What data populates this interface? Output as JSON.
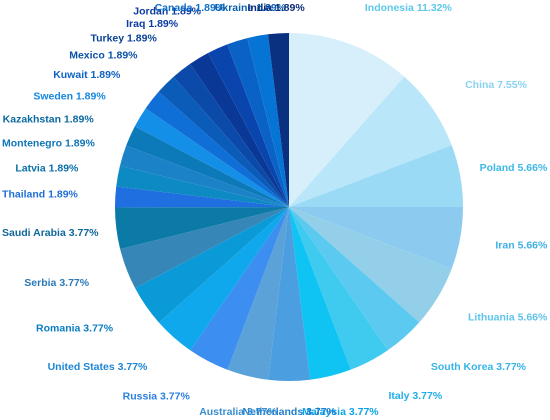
{
  "chart_data": {
    "type": "pie",
    "start": "top",
    "direction": "clockwise",
    "slices": [
      {
        "label": "Indonesia",
        "value": 11.32,
        "color": "#d7effb",
        "text_color": "#5ec8ea",
        "display": "Indonesia 11.32%"
      },
      {
        "label": "China",
        "value": 7.55,
        "color": "#b9e6f8",
        "text_color": "#8ad3f0",
        "display": "China 7.55%"
      },
      {
        "label": "Poland",
        "value": 5.66,
        "color": "#9adaf5",
        "text_color": "#3db8e6",
        "display": "Poland 5.66%"
      },
      {
        "label": "Iran",
        "value": 5.66,
        "color": "#8ccbef",
        "text_color": "#3db0e6",
        "display": "Iran 5.66%"
      },
      {
        "label": "Lithuania",
        "value": 5.66,
        "color": "#93cfe8",
        "text_color": "#5ec4ea",
        "display": "Lithuania 5.66%"
      },
      {
        "label": "South Korea",
        "value": 3.77,
        "color": "#5ccaf0",
        "text_color": "#36b4ea",
        "display": "South Korea 3.77%"
      },
      {
        "label": "Italy",
        "value": 3.77,
        "color": "#3fcaf0",
        "text_color": "#20aee8",
        "display": "Italy 3.77%"
      },
      {
        "label": "Malaysia",
        "value": 3.77,
        "color": "#0fc3f3",
        "text_color": "#0ea5e8",
        "display": "Malaysia 3.77%"
      },
      {
        "label": "Netherlands",
        "value": 3.77,
        "color": "#4b9ee0",
        "text_color": "#1f7fd0",
        "display": "Netherlands 3.77%"
      },
      {
        "label": "Australia",
        "value": 3.77,
        "color": "#5aa2d8",
        "text_color": "#3b8fd0",
        "display": "Australia 3.77%"
      },
      {
        "label": "Russia",
        "value": 3.77,
        "color": "#3c8ef0",
        "text_color": "#2a7ee0",
        "display": "Russia 3.77%"
      },
      {
        "label": "United States",
        "value": 3.77,
        "color": "#0fa8ec",
        "text_color": "#1d86d6",
        "display": "United States 3.77%"
      },
      {
        "label": "Romania",
        "value": 3.77,
        "color": "#0a9ad8",
        "text_color": "#0b7dc4",
        "display": "Romania 3.77%"
      },
      {
        "label": "Serbia",
        "value": 3.77,
        "color": "#3686b8",
        "text_color": "#2a7ab8",
        "display": "Serbia 3.77%"
      },
      {
        "label": "Saudi Arabia",
        "value": 3.77,
        "color": "#0b7aa6",
        "text_color": "#10679a",
        "display": "Saudi Arabia 3.77%"
      },
      {
        "label": "Thailand",
        "value": 1.89,
        "color": "#1f6fe0",
        "text_color": "#1f6fd8",
        "display": "Thailand 1.89%"
      },
      {
        "label": "Latvia",
        "value": 1.89,
        "color": "#0d8ac2",
        "text_color": "#0c6fa8",
        "display": "Latvia 1.89%"
      },
      {
        "label": "Montenegro",
        "value": 1.89,
        "color": "#1c82c8",
        "text_color": "#0f74b8",
        "display": "Montenegro 1.89%"
      },
      {
        "label": "Kazakhstan",
        "value": 1.89,
        "color": "#0c7ab8",
        "text_color": "#0b6aa0",
        "display": "Kazakhstan 1.89%"
      },
      {
        "label": "Sweden",
        "value": 1.89,
        "color": "#148fe8",
        "text_color": "#1588e0",
        "display": "Sweden 1.89%"
      },
      {
        "label": "Kuwait",
        "value": 1.89,
        "color": "#0f6fd6",
        "text_color": "#0e62c4",
        "display": "Kuwait 1.89%"
      },
      {
        "label": "Mexico",
        "value": 1.89,
        "color": "#0b5bb8",
        "text_color": "#0b52a8",
        "display": "Mexico 1.89%"
      },
      {
        "label": "Turkey",
        "value": 1.89,
        "color": "#0b4aa8",
        "text_color": "#0a4296",
        "display": "Turkey 1.89%"
      },
      {
        "label": "Iraq",
        "value": 1.89,
        "color": "#0a3896",
        "text_color": "#0b3aa0",
        "display": "Iraq 1.89%"
      },
      {
        "label": "Jordan",
        "value": 1.89,
        "color": "#0a45ae",
        "text_color": "#0b3c9c",
        "display": "Jordan 1.89%"
      },
      {
        "label": "Canada",
        "value": 1.89,
        "color": "#0a62c6",
        "text_color": "#0d6ec8",
        "display": "Canada 1.89%"
      },
      {
        "label": "Ukraine",
        "value": 1.89,
        "color": "#0674d4",
        "text_color": "#0a5fb0",
        "display": "Ukraine 1.89%"
      },
      {
        "label": "India",
        "value": 1.89,
        "color": "#0a3080",
        "text_color": "#0a2c78",
        "display": "India 1.89%"
      }
    ]
  }
}
